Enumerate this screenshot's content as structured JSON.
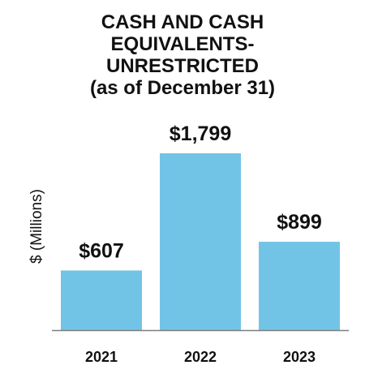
{
  "chart_data": {
    "type": "bar",
    "title_lines": [
      "CASH AND CASH",
      "EQUIVALENTS-",
      "UNRESTRICTED",
      "(as of December 31)"
    ],
    "ylabel": "$ (Millions)",
    "categories": [
      "2021",
      "2022",
      "2023"
    ],
    "values": [
      607,
      1799,
      899
    ],
    "value_labels": [
      "$607",
      "$1,799",
      "$899"
    ],
    "ylim": [
      0,
      1799
    ],
    "grid": false,
    "legend": "none",
    "bar_color": "#72c4e6",
    "axis_color": "#7f7f7f"
  }
}
